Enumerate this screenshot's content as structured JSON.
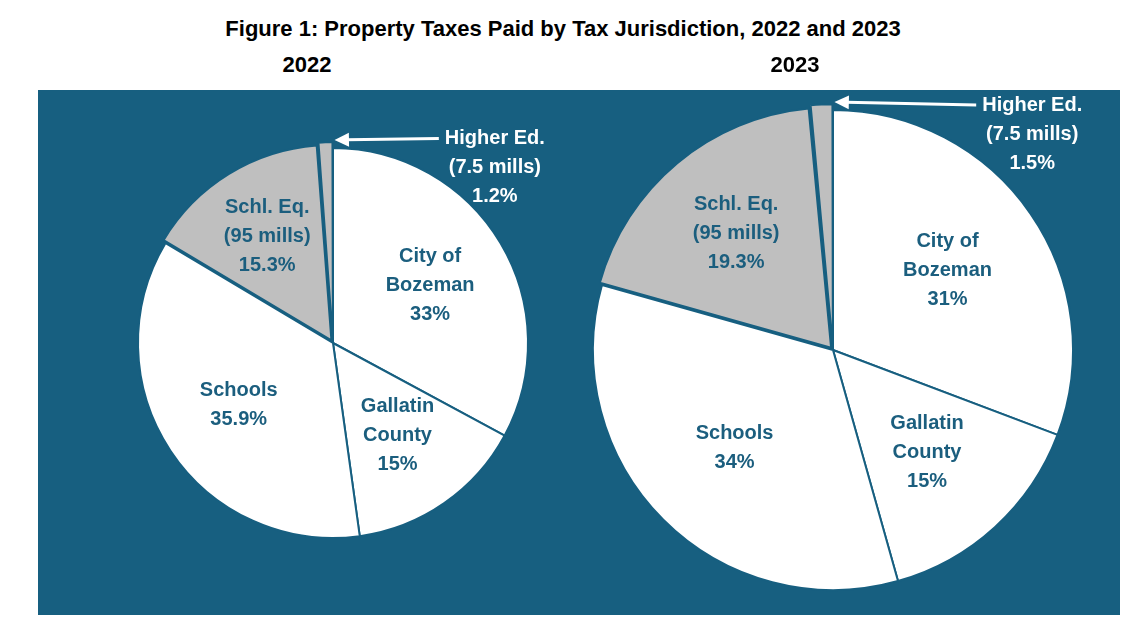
{
  "title": "Figure 1: Property Taxes Paid by Tax Jurisdiction, 2022 and 2023",
  "chart_data": [
    {
      "type": "pie",
      "title": "2022",
      "categories": [
        "City of Bozeman",
        "Gallatin County",
        "Schools",
        "Schl. Eq. (95 mills)",
        "Higher Ed. (7.5 mills)"
      ],
      "values": [
        33,
        15,
        35.9,
        15.3,
        1.2
      ],
      "value_labels": [
        "33%",
        "15%",
        "35.9%",
        "15.3%",
        "1.2%"
      ],
      "colors": [
        "#ffffff",
        "#ffffff",
        "#ffffff",
        "#bfbfbf",
        "#bfbfbf"
      ],
      "data_labels": true
    },
    {
      "type": "pie",
      "title": "2023",
      "categories": [
        "City of Bozeman",
        "Gallatin County",
        "Schools",
        "Schl. Eq. (95 mills)",
        "Higher Ed. (7.5 mills)"
      ],
      "values": [
        31,
        15,
        34,
        19.3,
        1.5
      ],
      "value_labels": [
        "31%",
        "15%",
        "34%",
        "19.3%",
        "1.5%"
      ],
      "colors": [
        "#ffffff",
        "#ffffff",
        "#ffffff",
        "#bfbfbf",
        "#bfbfbf"
      ],
      "data_labels": true
    }
  ]
}
